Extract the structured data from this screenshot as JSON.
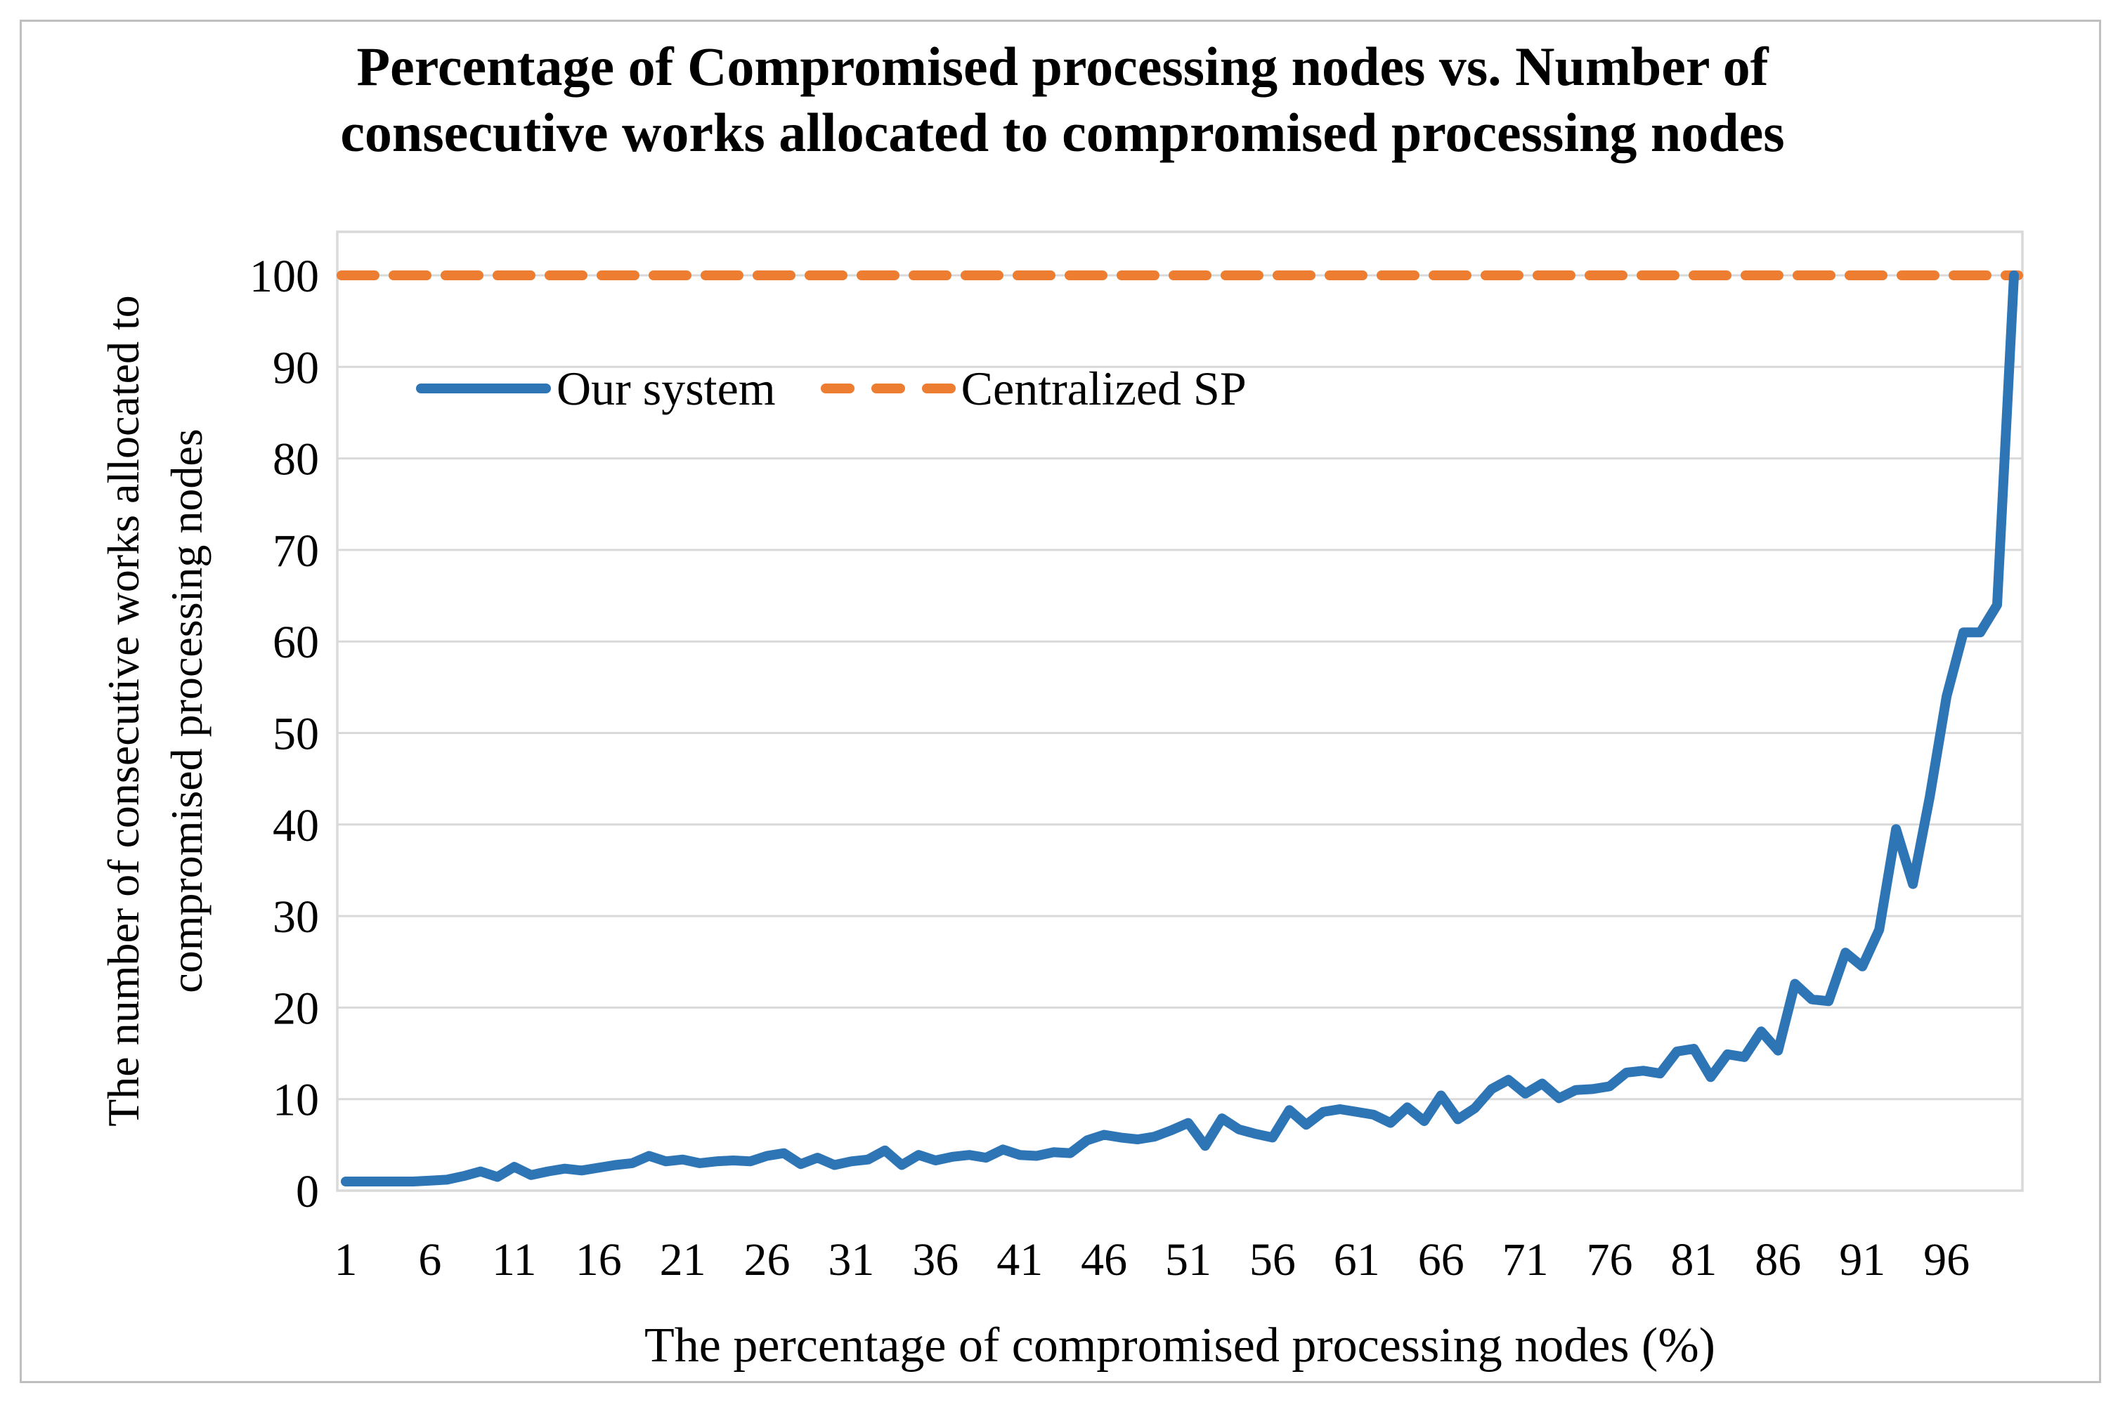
{
  "title": {
    "line1": "Percentage of Compromised processing nodes vs. Number of",
    "line2": "consecutive works allocated to compromised processing nodes"
  },
  "axes": {
    "x_title": "The percentage of compromised processing nodes (%)",
    "y_title_line1": "The number of consecutive works allocated to",
    "y_title_line2": "compromised processing nodes"
  },
  "chart_data": {
    "type": "line",
    "title": "Percentage of Compromised processing nodes vs. Number of consecutive works allocated to compromised processing nodes",
    "xlabel": "The percentage of compromised processing nodes (%)",
    "ylabel": "The number of consecutive works allocated to compromised processing nodes",
    "x_start": 1,
    "x_end": 100,
    "x_ticks": [
      1,
      6,
      11,
      16,
      21,
      26,
      31,
      36,
      41,
      46,
      51,
      56,
      61,
      66,
      71,
      76,
      81,
      86,
      91,
      96
    ],
    "y_ticks": [
      0,
      10,
      20,
      30,
      40,
      50,
      60,
      70,
      80,
      90,
      100
    ],
    "ylim": [
      0,
      100
    ],
    "grid": true,
    "legend_position": "inside-top-left",
    "colors": {
      "gridline": "#D9D9D9",
      "frame": "#D9D9D9",
      "figure_border": "#BFBFBF",
      "text": "#000000"
    },
    "series": [
      {
        "name": "Our system",
        "color": "#2E75B6",
        "style": "solid",
        "values": [
          1.0,
          1.0,
          1.0,
          1.0,
          1.0,
          1.1,
          1.2,
          1.6,
          2.1,
          1.5,
          2.6,
          1.7,
          2.1,
          2.4,
          2.2,
          2.5,
          2.8,
          3.0,
          3.8,
          3.2,
          3.4,
          3.0,
          3.2,
          3.3,
          3.2,
          3.8,
          4.1,
          2.9,
          3.6,
          2.8,
          3.2,
          3.4,
          4.4,
          2.8,
          3.9,
          3.3,
          3.7,
          3.9,
          3.6,
          4.5,
          3.9,
          3.8,
          4.2,
          4.1,
          5.5,
          6.1,
          5.8,
          5.6,
          5.9,
          6.6,
          7.4,
          4.9,
          7.9,
          6.7,
          6.2,
          5.8,
          8.8,
          7.2,
          8.6,
          8.9,
          8.6,
          8.3,
          7.4,
          9.1,
          7.6,
          10.4,
          7.8,
          9.0,
          11.1,
          12.1,
          10.6,
          11.7,
          10.1,
          11.0,
          11.1,
          11.4,
          12.9,
          13.1,
          12.8,
          15.2,
          15.5,
          12.4,
          14.9,
          14.6,
          17.4,
          15.3,
          22.6,
          20.9,
          20.7,
          26.0,
          24.5,
          28.5,
          39.5,
          33.5,
          43.0,
          54.0,
          61.0,
          61.0,
          64.0,
          100.0
        ]
      },
      {
        "name": "Centralized SP",
        "color": "#ED7D31",
        "style": "dashed",
        "constant_value": 100
      }
    ]
  }
}
